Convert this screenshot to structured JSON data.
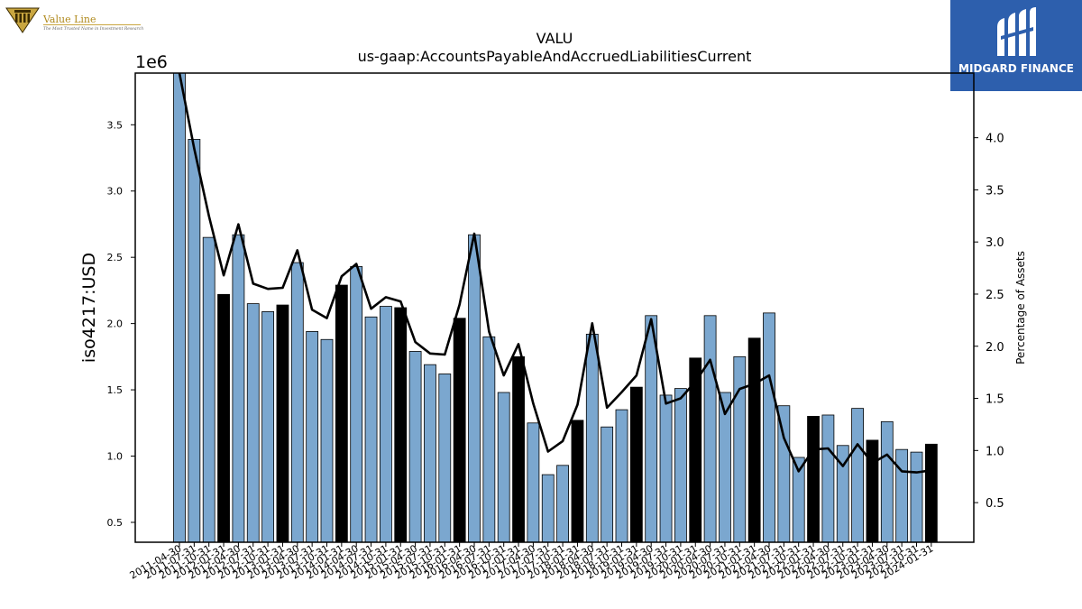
{
  "logos": {
    "left_name": "Value Line",
    "left_tagline": "The Most Trusted Name in Investment Research",
    "right_name": "MIDGARD FINANCE"
  },
  "chart_data": {
    "type": "bar",
    "title": "VALU",
    "subtitle": "us-gaap:AccountsPayableAndAccruedLiabilitiesCurrent",
    "ylabel": "iso4217:USD",
    "y2label": "Percentage of Assets",
    "y_exponent": "1e6",
    "ylim": [
      350000,
      3890000
    ],
    "y2lim": [
      0.12,
      4.62
    ],
    "yticks": [
      0.5,
      1.0,
      1.5,
      2.0,
      2.5,
      3.0,
      3.5
    ],
    "y2ticks": [
      0.5,
      1.0,
      1.5,
      2.0,
      2.5,
      3.0,
      3.5,
      4.0
    ],
    "categories": [
      "2011-04-30",
      "2011-07-31",
      "2011-10-31",
      "2012-01-31",
      "2012-04-30",
      "2012-07-31",
      "2012-10-31",
      "2013-01-31",
      "2013-04-30",
      "2013-07-31",
      "2013-10-31",
      "2014-01-31",
      "2014-04-30",
      "2014-07-31",
      "2014-10-31",
      "2015-01-31",
      "2015-04-30",
      "2015-07-31",
      "2015-10-31",
      "2016-01-31",
      "2016-04-30",
      "2016-07-31",
      "2016-10-31",
      "2017-01-31",
      "2017-04-30",
      "2017-07-31",
      "2017-10-31",
      "2018-01-31",
      "2018-04-30",
      "2018-07-31",
      "2018-10-31",
      "2019-01-31",
      "2019-04-30",
      "2019-07-31",
      "2019-10-31",
      "2020-01-31",
      "2020-04-30",
      "2020-07-31",
      "2020-10-31",
      "2021-01-31",
      "2021-04-30",
      "2021-07-31",
      "2021-10-31",
      "2022-01-31",
      "2022-04-30",
      "2022-07-31",
      "2022-10-31",
      "2023-01-31",
      "2023-04-30",
      "2023-07-31",
      "2023-10-31",
      "2024-01-31"
    ],
    "series": [
      {
        "type": "bar",
        "values": [
          3890000,
          3390000,
          2650000,
          2220000,
          2670000,
          2150000,
          2090000,
          2140000,
          2460000,
          1940000,
          1880000,
          2290000,
          2430000,
          2050000,
          2130000,
          2120000,
          1790000,
          1690000,
          1620000,
          2040000,
          2670000,
          1900000,
          1480000,
          1750000,
          1250000,
          860000,
          930000,
          1270000,
          1920000,
          1220000,
          1350000,
          1520000,
          2060000,
          1460000,
          1510000,
          1740000,
          2060000,
          1480000,
          1750000,
          1890000,
          2080000,
          1380000,
          990000,
          1300000,
          1310000,
          1080000,
          1360000,
          1120000,
          1260000,
          1050000,
          1030000,
          1090000
        ],
        "fiscal_year_end": [
          false,
          false,
          false,
          true,
          false,
          false,
          false,
          true,
          false,
          false,
          false,
          true,
          false,
          false,
          false,
          true,
          false,
          false,
          false,
          true,
          false,
          false,
          false,
          true,
          false,
          false,
          false,
          true,
          false,
          false,
          false,
          true,
          false,
          false,
          false,
          true,
          false,
          false,
          false,
          true,
          false,
          false,
          false,
          true,
          false,
          false,
          false,
          true,
          false,
          false,
          false,
          true
        ],
        "colors": {
          "quarter": "#7ba7cf",
          "fiscal_year_end": "#000000"
        }
      },
      {
        "type": "line",
        "axis": "right",
        "values": [
          4.62,
          3.9,
          3.25,
          2.68,
          3.17,
          2.6,
          2.55,
          2.56,
          2.92,
          2.35,
          2.27,
          2.67,
          2.79,
          2.36,
          2.47,
          2.43,
          2.04,
          1.93,
          1.92,
          2.4,
          3.08,
          2.14,
          1.72,
          2.02,
          1.45,
          0.99,
          1.09,
          1.44,
          2.22,
          1.41,
          1.56,
          1.72,
          2.26,
          1.45,
          1.5,
          1.66,
          1.87,
          1.35,
          1.59,
          1.64,
          1.72,
          1.12,
          0.8,
          1.01,
          1.02,
          0.85,
          1.06,
          0.88,
          0.96,
          0.8,
          0.79,
          0.81
        ],
        "color": "#000000"
      }
    ],
    "grid": false,
    "legend": "none"
  }
}
